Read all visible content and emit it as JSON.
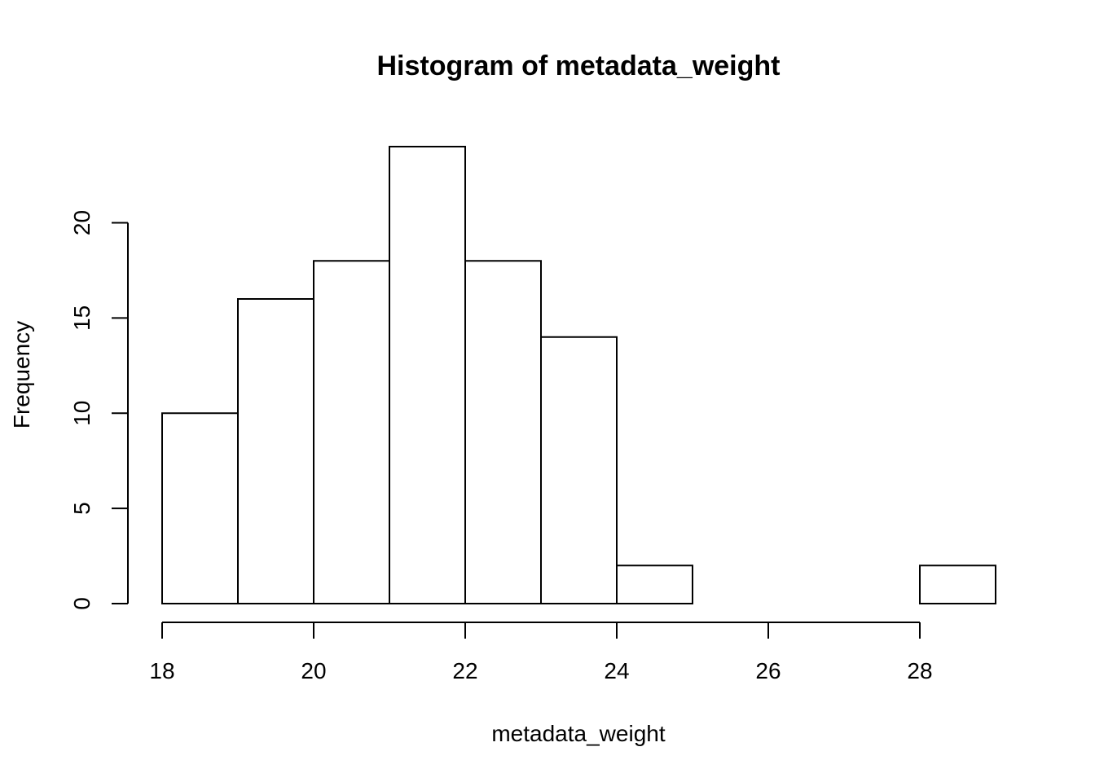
{
  "chart_data": {
    "type": "bar",
    "title": "Histogram of metadata_weight",
    "xlabel": "metadata_weight",
    "ylabel": "Frequency",
    "bins": [
      {
        "start": 18,
        "end": 19,
        "count": 10
      },
      {
        "start": 19,
        "end": 20,
        "count": 16
      },
      {
        "start": 20,
        "end": 21,
        "count": 18
      },
      {
        "start": 21,
        "end": 22,
        "count": 24
      },
      {
        "start": 22,
        "end": 23,
        "count": 18
      },
      {
        "start": 23,
        "end": 24,
        "count": 14
      },
      {
        "start": 24,
        "end": 25,
        "count": 2
      },
      {
        "start": 25,
        "end": 26,
        "count": 0
      },
      {
        "start": 26,
        "end": 27,
        "count": 0
      },
      {
        "start": 27,
        "end": 28,
        "count": 0
      },
      {
        "start": 28,
        "end": 29,
        "count": 2
      }
    ],
    "xticks": [
      18,
      20,
      22,
      24,
      26,
      28
    ],
    "yticks": [
      0,
      5,
      10,
      15,
      20
    ],
    "xlim": [
      18,
      29
    ],
    "ylim": [
      0,
      24
    ],
    "grid": false,
    "legend": "none",
    "bar_fill": "#ffffff",
    "bar_stroke": "#000000"
  }
}
